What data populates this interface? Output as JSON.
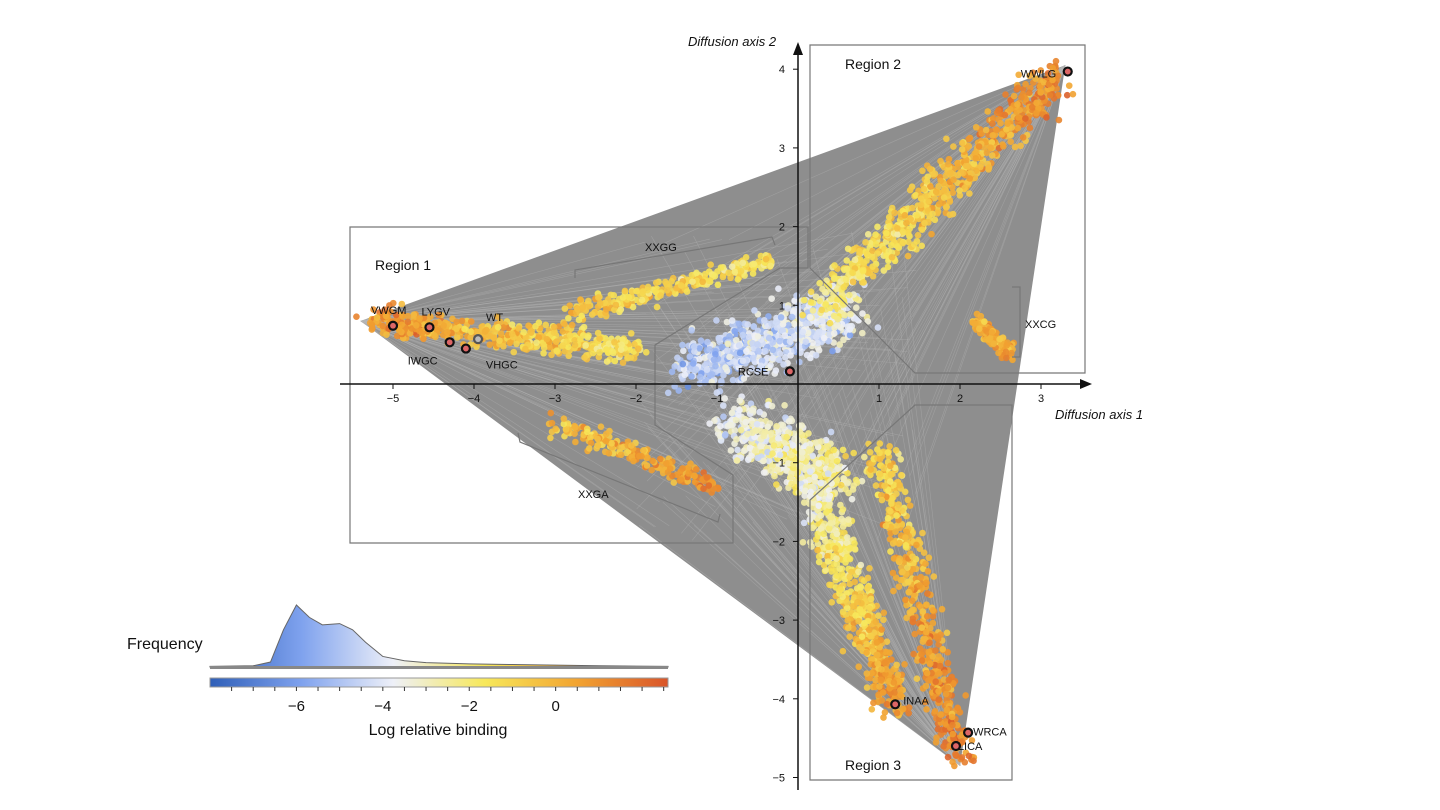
{
  "chart_data": {
    "type": "scatter",
    "xlabel": "Diffusion axis 1",
    "ylabel": "Diffusion axis 2",
    "xlim": [
      -5.6,
      3.6
    ],
    "ylim": [
      -5.1,
      4.3
    ],
    "xticks": [
      -5,
      -4,
      -3,
      -2,
      -1,
      1,
      2,
      3
    ],
    "yticks": [
      4,
      3,
      2,
      1,
      -1,
      -2,
      -3,
      -4,
      -5
    ],
    "grid": false,
    "regions": [
      {
        "label": "Region 1"
      },
      {
        "label": "Region 2"
      },
      {
        "label": "Region 3"
      }
    ],
    "cluster_labels": [
      "XXGG",
      "XXCG",
      "XXGA"
    ],
    "labeled_points": [
      {
        "label": "VWGM",
        "x": -5.0,
        "y": 0.74
      },
      {
        "label": "LYGV",
        "x": -4.55,
        "y": 0.72
      },
      {
        "label": "WT",
        "x": -3.95,
        "y": 0.57
      },
      {
        "label": "IWGC",
        "x": -4.3,
        "y": 0.53
      },
      {
        "label": "VHGC",
        "x": -4.1,
        "y": 0.45
      },
      {
        "label": "RCSE",
        "x": -0.1,
        "y": 0.16
      },
      {
        "label": "WWLG",
        "x": 3.33,
        "y": 3.97
      },
      {
        "label": "INAA",
        "x": 1.2,
        "y": -4.07
      },
      {
        "label": "WRCA",
        "x": 2.1,
        "y": -4.43
      },
      {
        "label": "LICA",
        "x": 1.95,
        "y": -4.6
      }
    ],
    "colorbar": {
      "label": "Log relative binding",
      "range": [
        -8,
        2.6
      ],
      "ticks": [
        -6,
        -4,
        -2,
        0
      ],
      "colors": [
        "#2f5fb8",
        "#7fa2ee",
        "#eef0f8",
        "#f7e85a",
        "#f2a431",
        "#d9552a"
      ],
      "histogram_label": "Frequency",
      "histogram": {
        "x": [
          -8,
          -7,
          -6.6,
          -6.3,
          -6.0,
          -5.7,
          -5.4,
          -5.0,
          -4.7,
          -4.4,
          -4.0,
          -3.5,
          -3.0,
          -2.0,
          -1.0,
          0,
          1,
          2.6
        ],
        "freq": [
          0.01,
          0.02,
          0.08,
          0.6,
          1.0,
          0.8,
          0.68,
          0.7,
          0.6,
          0.4,
          0.17,
          0.1,
          0.07,
          0.05,
          0.04,
          0.03,
          0.02,
          0.01
        ]
      }
    }
  }
}
